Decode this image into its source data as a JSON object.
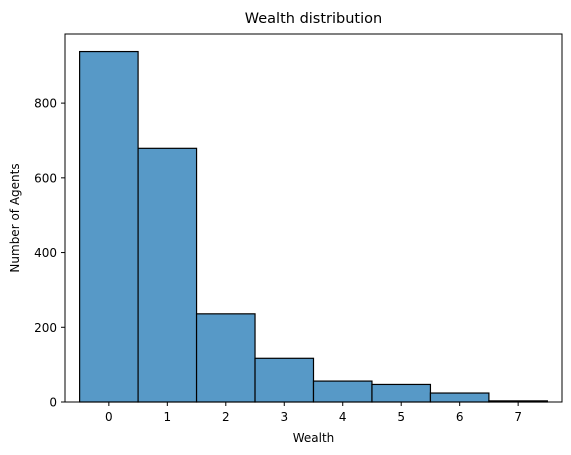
{
  "chart_data": {
    "type": "bar",
    "title": "Wealth distribution",
    "xlabel": "Wealth",
    "ylabel": "Number of Agents",
    "categories": [
      "0",
      "1",
      "2",
      "3",
      "4",
      "5",
      "6",
      "7"
    ],
    "values": [
      938,
      679,
      236,
      117,
      56,
      47,
      24,
      3
    ],
    "xlim": [
      -0.75,
      7.75
    ],
    "ylim": [
      0,
      985
    ],
    "xticks": [
      0,
      1,
      2,
      3,
      4,
      5,
      6,
      7
    ],
    "yticks": [
      0,
      200,
      400,
      600,
      800
    ],
    "bar_color": "#5799c7",
    "edge_color": "#000000",
    "grid": false
  }
}
